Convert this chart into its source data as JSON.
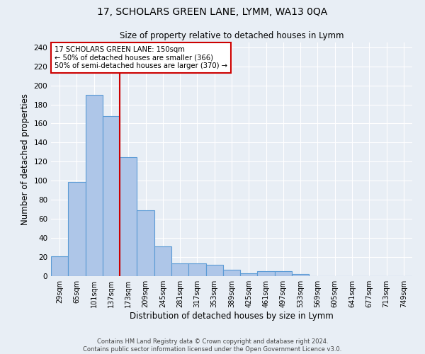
{
  "title": "17, SCHOLARS GREEN LANE, LYMM, WA13 0QA",
  "subtitle": "Size of property relative to detached houses in Lymm",
  "xlabel": "Distribution of detached houses by size in Lymm",
  "ylabel": "Number of detached properties",
  "footer_line1": "Contains HM Land Registry data © Crown copyright and database right 2024.",
  "footer_line2": "Contains public sector information licensed under the Open Government Licence v3.0.",
  "categories": [
    "29sqm",
    "65sqm",
    "101sqm",
    "137sqm",
    "173sqm",
    "209sqm",
    "245sqm",
    "281sqm",
    "317sqm",
    "353sqm",
    "389sqm",
    "425sqm",
    "461sqm",
    "497sqm",
    "533sqm",
    "569sqm",
    "605sqm",
    "641sqm",
    "677sqm",
    "713sqm",
    "749sqm"
  ],
  "values": [
    21,
    99,
    190,
    168,
    125,
    69,
    31,
    13,
    13,
    12,
    7,
    3,
    5,
    5,
    2,
    0,
    0,
    0,
    0,
    0,
    0
  ],
  "bar_color": "#aec6e8",
  "bar_edge_color": "#5b9bd5",
  "background_color": "#e8eef5",
  "grid_color": "#ffffff",
  "red_line_x": 3.5,
  "red_line_color": "#cc0000",
  "annotation_text": "17 SCHOLARS GREEN LANE: 150sqm\n← 50% of detached houses are smaller (366)\n50% of semi-detached houses are larger (370) →",
  "annotation_box_color": "#ffffff",
  "annotation_box_edge": "#cc0000",
  "ylim": [
    0,
    245
  ],
  "yticks": [
    0,
    20,
    40,
    60,
    80,
    100,
    120,
    140,
    160,
    180,
    200,
    220,
    240
  ]
}
